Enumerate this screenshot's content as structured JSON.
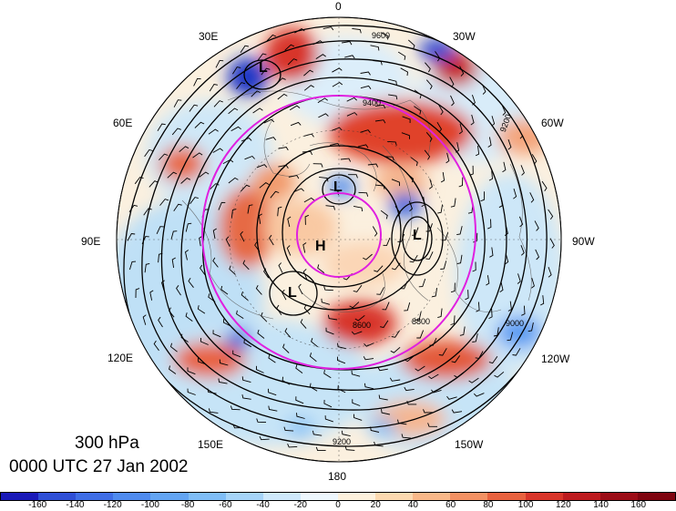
{
  "title": {
    "level": "300 hPa",
    "time": "0000 UTC 27 Jan 2002"
  },
  "longitude_labels": [
    "0",
    "30W",
    "60W",
    "90W",
    "120W",
    "150W",
    "180",
    "150E",
    "120E",
    "90E",
    "60E",
    "30E"
  ],
  "pressure_centers": [
    "L",
    "L",
    "L",
    "H",
    "L"
  ],
  "contour_labels": [
    "9600",
    "9400",
    "9200",
    "9000",
    "8800",
    "8600",
    "9200"
  ],
  "colorbar": {
    "ticks": [
      "-160",
      "-140",
      "-120",
      "-100",
      "-80",
      "-60",
      "-40",
      "-20",
      "0",
      "20",
      "40",
      "60",
      "80",
      "100",
      "120",
      "140",
      "160"
    ],
    "colors": [
      "#1a1ab8",
      "#2f4fd6",
      "#3f6ee6",
      "#4f8bef",
      "#63a5f3",
      "#7fbdf6",
      "#a6d4f8",
      "#cfe9fb",
      "#eef7fd",
      "#fdf1dd",
      "#fcd9b0",
      "#f9b889",
      "#f39163",
      "#e8623f",
      "#d8352a",
      "#bd1b1f",
      "#9c0d17",
      "#7f0510"
    ]
  },
  "chart_data": {
    "type": "polar stereographic map",
    "variable": "wind speed anomaly shading with geopotential height contours and wind barbs",
    "colorbar_range": [
      -180,
      180
    ],
    "highlight_rings": "magenta circles"
  }
}
